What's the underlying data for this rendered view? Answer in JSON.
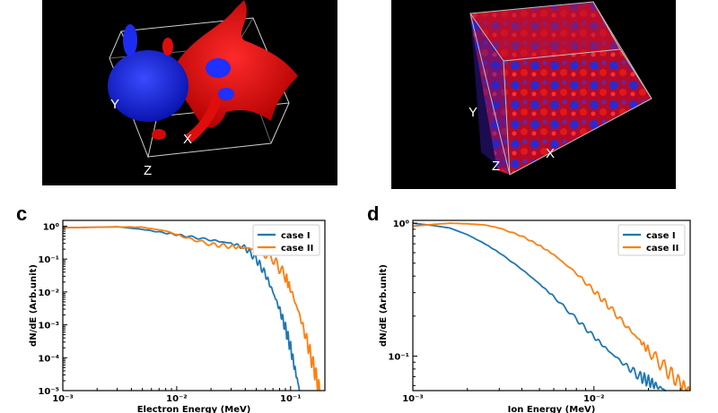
{
  "figure": {
    "panels": [
      {
        "letter": "",
        "axes_letters": [
          "Y",
          "X",
          "Z"
        ],
        "colors": {
          "foreground": "#ff1a1a",
          "background_blob": "#1a2cff",
          "backdrop": "#000000"
        }
      },
      {
        "letter": "",
        "axes_letters": [
          "Y",
          "X",
          "Z"
        ],
        "colors": {
          "foreground": "#ff1a1a",
          "background_blob": "#1a2cff",
          "backdrop": "#000000"
        }
      },
      {
        "letter": "c"
      },
      {
        "letter": "d"
      }
    ]
  },
  "chart_data": [
    {
      "type": "line",
      "xlabel": "Electron Energy (MeV)",
      "ylabel": "dN/dE (Arb.unit)",
      "xscale": "log",
      "yscale": "log",
      "xlim": [
        0.001,
        0.2
      ],
      "ylim": [
        1e-05,
        1.5
      ],
      "x_ticks": [
        {
          "value": 0.001,
          "label": "10⁻³"
        },
        {
          "value": 0.01,
          "label": "10⁻²"
        },
        {
          "value": 0.1,
          "label": "10⁻¹"
        }
      ],
      "y_ticks": [
        {
          "value": 1,
          "label": "10⁰"
        },
        {
          "value": 0.1,
          "label": "10⁻¹"
        },
        {
          "value": 0.01,
          "label": "10⁻²"
        },
        {
          "value": 0.001,
          "label": "10⁻³"
        },
        {
          "value": 0.0001,
          "label": "10⁻⁴"
        },
        {
          "value": 1e-05,
          "label": "10⁻⁵"
        }
      ],
      "legend": "top-right",
      "series": [
        {
          "name": "case I",
          "color": "#1f77b4",
          "x": [
            0.001,
            0.002,
            0.003,
            0.005,
            0.008,
            0.012,
            0.02,
            0.03,
            0.04,
            0.05,
            0.06,
            0.07,
            0.08,
            0.09,
            0.1,
            0.11,
            0.12
          ],
          "y": [
            0.9,
            0.93,
            0.96,
            0.8,
            0.62,
            0.5,
            0.38,
            0.3,
            0.22,
            0.1,
            0.035,
            0.01,
            0.003,
            0.0008,
            0.0002,
            4e-05,
            1e-05
          ]
        },
        {
          "name": "case II",
          "color": "#ff7f0e",
          "x": [
            0.001,
            0.002,
            0.003,
            0.005,
            0.008,
            0.012,
            0.02,
            0.03,
            0.04,
            0.05,
            0.07,
            0.09,
            0.1,
            0.12,
            0.14,
            0.16,
            0.18
          ],
          "y": [
            0.9,
            0.93,
            0.95,
            0.93,
            0.72,
            0.45,
            0.28,
            0.24,
            0.22,
            0.2,
            0.1,
            0.03,
            0.012,
            0.002,
            0.0003,
            5e-05,
            1e-05
          ]
        }
      ]
    },
    {
      "type": "line",
      "xlabel": "Ion Energy (MeV)",
      "ylabel": "dN/dE (Arb.unit)",
      "xscale": "log",
      "yscale": "log",
      "xlim": [
        0.001,
        0.034
      ],
      "ylim": [
        0.055,
        1.05
      ],
      "x_ticks": [
        {
          "value": 0.001,
          "label": "10⁻³"
        },
        {
          "value": 0.01,
          "label": "10⁻²"
        }
      ],
      "y_ticks": [
        {
          "value": 1,
          "label": "10⁰"
        },
        {
          "value": 0.1,
          "label": "10⁻¹"
        }
      ],
      "legend": "top-right",
      "series": [
        {
          "name": "case I",
          "color": "#1f77b4",
          "x": [
            0.001,
            0.0013,
            0.0016,
            0.002,
            0.0025,
            0.003,
            0.004,
            0.005,
            0.006,
            0.008,
            0.01,
            0.012,
            0.015,
            0.018,
            0.02,
            0.022,
            0.025
          ],
          "y": [
            1.0,
            0.96,
            0.92,
            0.82,
            0.7,
            0.6,
            0.45,
            0.35,
            0.28,
            0.19,
            0.14,
            0.11,
            0.085,
            0.07,
            0.065,
            0.06,
            0.055
          ]
        },
        {
          "name": "case II",
          "color": "#ff7f0e",
          "x": [
            0.001,
            0.0013,
            0.0016,
            0.002,
            0.0025,
            0.003,
            0.004,
            0.005,
            0.006,
            0.008,
            0.01,
            0.012,
            0.015,
            0.018,
            0.02,
            0.025,
            0.03,
            0.034
          ],
          "y": [
            0.95,
            0.98,
            1.0,
            0.99,
            0.97,
            0.92,
            0.8,
            0.68,
            0.58,
            0.42,
            0.31,
            0.24,
            0.17,
            0.13,
            0.11,
            0.08,
            0.062,
            0.055
          ]
        }
      ]
    }
  ]
}
